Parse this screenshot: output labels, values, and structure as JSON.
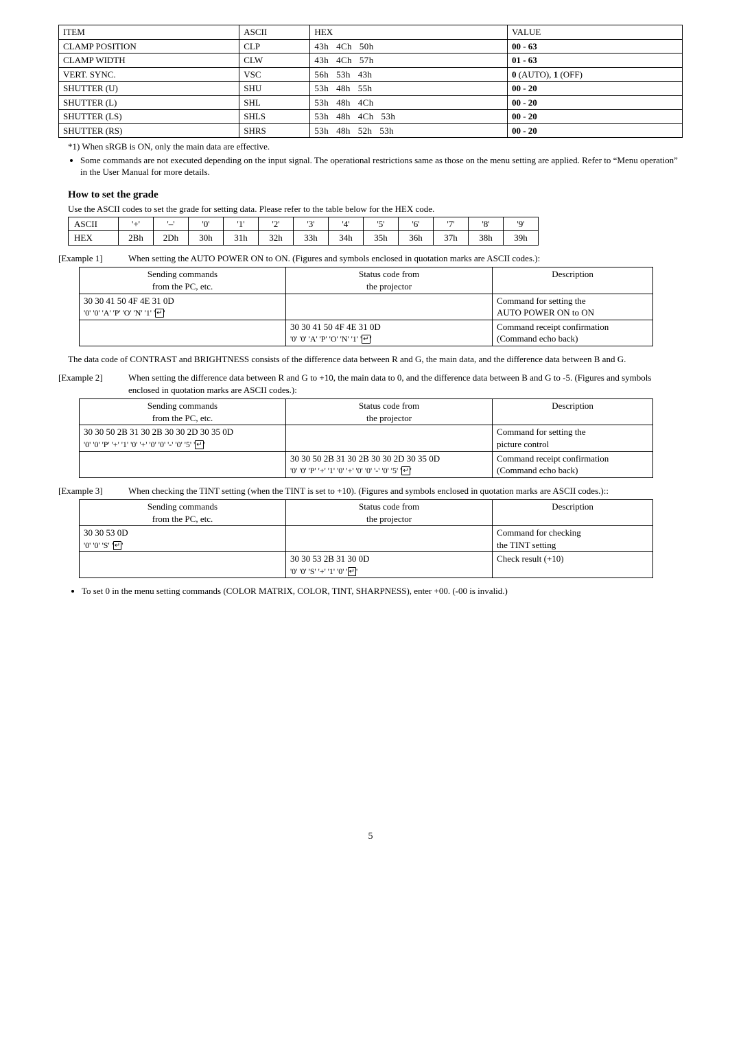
{
  "main_table": {
    "headers": [
      "ITEM",
      "ASCII",
      "HEX",
      "VALUE"
    ],
    "rows": [
      {
        "item": "CLAMP POSITION",
        "ascii": "CLP",
        "hex": "43h   4Ch   50h",
        "value": "<b>00 - 63</b>"
      },
      {
        "item": "CLAMP WIDTH",
        "ascii": "CLW",
        "hex": "43h   4Ch   57h",
        "value": "<b>01 - 63</b>"
      },
      {
        "item": "VERT. SYNC.",
        "ascii": "VSC",
        "hex": "56h   53h   43h",
        "value": "<b>0</b> (AUTO), <b>1</b> (OFF)"
      },
      {
        "item": "SHUTTER (U)",
        "ascii": "SHU",
        "hex": "53h   48h   55h",
        "value": "<b>00 - 20</b>"
      },
      {
        "item": "SHUTTER (L)",
        "ascii": "SHL",
        "hex": "53h   48h   4Ch",
        "value": "<b>00 - 20</b>"
      },
      {
        "item": "SHUTTER (LS)",
        "ascii": "SHLS",
        "hex": "53h   48h   4Ch   53h",
        "value": "<b>00 - 20</b>"
      },
      {
        "item": "SHUTTER (RS)",
        "ascii": "SHRS",
        "hex": "53h   48h   52h   53h",
        "value": "<b>00 - 20</b>"
      }
    ]
  },
  "note_star": "*1) When sRGB is ON, only the main data are effective.",
  "note_bullet": "Some commands are not executed depending on the input signal. The operational restrictions same as those on the menu setting are applied. Refer to “Menu operation” in the User Manual for more details.",
  "grade_heading": "How to set the grade",
  "grade_use": "Use the ASCII codes to set the grade for setting data. Please refer to the table below for the HEX code.",
  "ascii_table": {
    "row_ascii": [
      "ASCII",
      "'+'",
      "'–'",
      "'0'",
      "'1'",
      "'2'",
      "'3'",
      "'4'",
      "'5'",
      "'6'",
      "'7'",
      "'8'",
      "'9'"
    ],
    "row_hex": [
      "HEX",
      "2Bh",
      "2Dh",
      "30h",
      "31h",
      "32h",
      "33h",
      "34h",
      "35h",
      "36h",
      "37h",
      "38h",
      "39h"
    ]
  },
  "enter_glyph": "↵",
  "example1": {
    "label": "[Example 1]",
    "text": "When setting the AUTO POWER ON to ON. (Figures and symbols enclosed in quotation marks are ASCII codes.):",
    "headers": [
      "Sending commands\nfrom the PC, etc.",
      "Status code from\nthe projector",
      "Description"
    ],
    "rows": [
      {
        "send_hex": "30 30 41 50 4F 4E 31 0D",
        "send_ascii": "'0' '0' 'A' 'P' 'O' 'N' '1' '",
        "status_hex": "",
        "status_ascii": "",
        "desc1": "Command for setting the",
        "desc2": "AUTO POWER ON to ON"
      },
      {
        "send_hex": "",
        "send_ascii": "",
        "status_hex": "30 30 41 50 4F 4E 31 0D",
        "status_ascii": "'0' '0' 'A' 'P' 'O' 'N' '1' '",
        "desc1": "Command receipt confirmation",
        "desc2": "(Command echo back)"
      }
    ]
  },
  "para1": "The data code of CONTRAST and BRIGHTNESS consists of the difference data between R  and G, the main data, and the difference data between B and G.",
  "example2": {
    "label": "[Example 2]",
    "text": "When setting the difference data between R and G to +10, the main data to 0, and the difference data between B and G to -5. (Figures and symbols enclosed in quotation marks are ASCII codes.):",
    "headers": [
      "Sending commands\nfrom the PC, etc.",
      "Status code from\nthe projector",
      "Description"
    ],
    "rows": [
      {
        "send_hex": "30 30 50 2B 31 30 2B 30 30 2D 30 35 0D",
        "send_ascii": "'0' '0' 'P' '+' '1' '0' '+' '0' '0' '-' '0' '5' '",
        "status_hex": "",
        "status_ascii": "",
        "desc1": "Command for setting the",
        "desc2": "picture control"
      },
      {
        "send_hex": "",
        "send_ascii": "",
        "status_hex": "30 30 50 2B 31 30 2B 30 30 2D 30 35 0D",
        "status_ascii": "'0' '0' 'P' '+' '1' '0' '+' '0' '0' '-' '0' '5' '",
        "desc1": "Command receipt confirmation",
        "desc2": "(Command echo back)"
      }
    ]
  },
  "example3": {
    "label": "[Example 3]",
    "text": "When checking the TINT setting (when the TINT is set to +10). (Figures and symbols enclosed in quotation marks are ASCII codes.)::",
    "headers": [
      "Sending commands\nfrom the PC, etc.",
      "Status code from\nthe projector",
      "Description"
    ],
    "rows": [
      {
        "send_hex": "30 30 53 0D",
        "send_ascii": "'0' '0' 'S' '",
        "status_hex": "",
        "status_ascii": "",
        "desc1": "Command for checking",
        "desc2": "the TINT setting"
      },
      {
        "send_hex": "",
        "send_ascii": "",
        "status_hex": "30 30 53 2B 31 30 0D",
        "status_ascii": "'0' '0' 'S' '+' '1' '0' '",
        "desc1": "Check result (+10)",
        "desc2": ""
      }
    ]
  },
  "final_bullet": "To set 0 in the menu setting commands (COLOR MATRIX, COLOR, TINT, SHARPNESS), enter +00. (-00 is invalid.)",
  "page_number": "5"
}
